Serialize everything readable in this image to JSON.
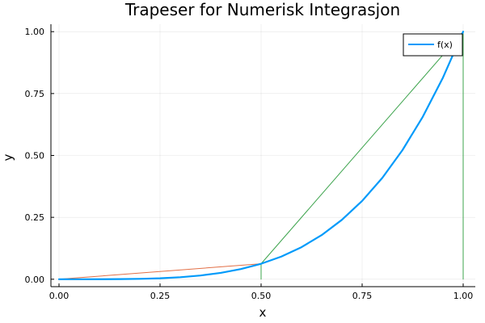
{
  "chart_data": {
    "type": "line",
    "title": "Trapeser for Numerisk Integrasjon",
    "xlabel": "x",
    "ylabel": "y",
    "xlim": [
      -0.02,
      1.03
    ],
    "ylim": [
      -0.03,
      1.03
    ],
    "xticks": [
      0.0,
      0.25,
      0.5,
      0.75,
      1.0
    ],
    "xtick_labels": [
      "0.00",
      "0.25",
      "0.50",
      "0.75",
      "1.00"
    ],
    "yticks": [
      0.0,
      0.25,
      0.5,
      0.75,
      1.0
    ],
    "ytick_labels": [
      "0.00",
      "0.25",
      "0.50",
      "0.75",
      "1.00"
    ],
    "grid": true,
    "legend_position": "top-right",
    "series": [
      {
        "name": "f(x)",
        "color": "#009AFA",
        "x": [
          0.0,
          0.05,
          0.1,
          0.15,
          0.2,
          0.25,
          0.3,
          0.35,
          0.4,
          0.45,
          0.5,
          0.55,
          0.6,
          0.65,
          0.7,
          0.75,
          0.8,
          0.85,
          0.9,
          0.95,
          1.0
        ],
        "y": [
          0.0,
          6.3e-06,
          0.0001,
          0.0005,
          0.0016,
          0.0039,
          0.0081,
          0.015,
          0.0256,
          0.041,
          0.0625,
          0.0915,
          0.1296,
          0.1785,
          0.2401,
          0.3164,
          0.4096,
          0.522,
          0.6561,
          0.8145,
          1.0
        ]
      },
      {
        "color": "#E26F46",
        "x": [
          0.0,
          0.5
        ],
        "y": [
          0.0,
          0.0625
        ]
      },
      {
        "color": "#3EA44E",
        "x": [
          0.5,
          0.5,
          1.0,
          1.0
        ],
        "y": [
          0.0,
          0.0625,
          1.0,
          0.0
        ]
      }
    ]
  }
}
